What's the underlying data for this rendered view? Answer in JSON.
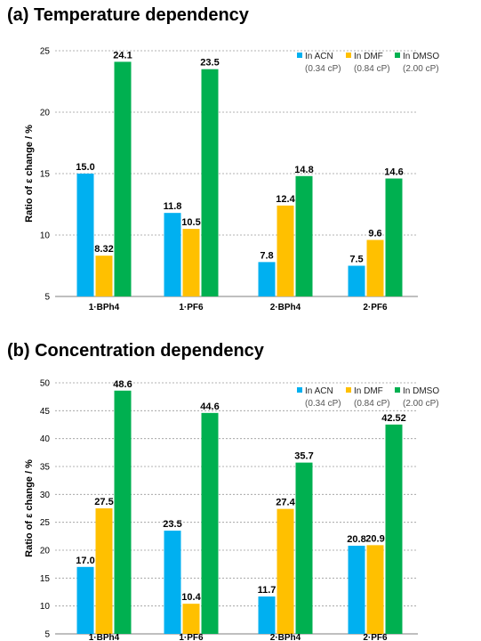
{
  "chart_data": [
    {
      "type": "bar",
      "title": "(a) Temperature dependency",
      "ylabel": "Ratio of ε change / %",
      "xlabel": "",
      "categories": [
        "1·BPh4",
        "1·PF6",
        "2·BPh4",
        "2·PF6"
      ],
      "ylim": [
        5,
        25
      ],
      "yticks": [
        5,
        10,
        15,
        20,
        25
      ],
      "grid": true,
      "legend_position": "top-right",
      "series": [
        {
          "name": "In ACN",
          "sub": "(0.34 cP)",
          "color": "#00B0F0",
          "values": [
            15.0,
            11.8,
            7.8,
            7.5
          ],
          "labels": [
            "15.0",
            "11.8",
            "7.8",
            "7.5"
          ]
        },
        {
          "name": "In DMF",
          "sub": "(0.84 cP)",
          "color": "#FFC000",
          "values": [
            8.32,
            10.5,
            12.4,
            9.6
          ],
          "labels": [
            "8.32",
            "10.5",
            "12.4",
            "9.6"
          ]
        },
        {
          "name": "In DMSO",
          "sub": "(2.00 cP)",
          "color": "#00B050",
          "values": [
            24.1,
            23.5,
            14.8,
            14.6
          ],
          "labels": [
            "24.1",
            "23.5",
            "14.8",
            "14.6"
          ]
        }
      ]
    },
    {
      "type": "bar",
      "title": "(b) Concentration dependency",
      "ylabel": "Ratio of ε change / %",
      "xlabel": "",
      "categories": [
        "1·BPh4",
        "1·PF6",
        "2·BPh4",
        "2·PF6"
      ],
      "ylim": [
        5,
        50
      ],
      "yticks": [
        5,
        10,
        15,
        20,
        25,
        30,
        35,
        40,
        45,
        50
      ],
      "grid": true,
      "legend_position": "top-right",
      "series": [
        {
          "name": "In ACN",
          "sub": "(0.34 cP)",
          "color": "#00B0F0",
          "values": [
            17.0,
            23.5,
            11.7,
            20.8
          ],
          "labels": [
            "17.0",
            "23.5",
            "11.7",
            "20.8"
          ]
        },
        {
          "name": "In DMF",
          "sub": "(0.84 cP)",
          "color": "#FFC000",
          "values": [
            27.5,
            10.4,
            27.4,
            20.9
          ],
          "labels": [
            "27.5",
            "10.4",
            "27.4",
            "20.9"
          ]
        },
        {
          "name": "In DMSO",
          "sub": "(2.00 cP)",
          "color": "#00B050",
          "values": [
            48.6,
            44.6,
            35.7,
            42.52
          ],
          "labels": [
            "48.6",
            "44.6",
            "35.7",
            "42.52"
          ]
        }
      ]
    }
  ]
}
